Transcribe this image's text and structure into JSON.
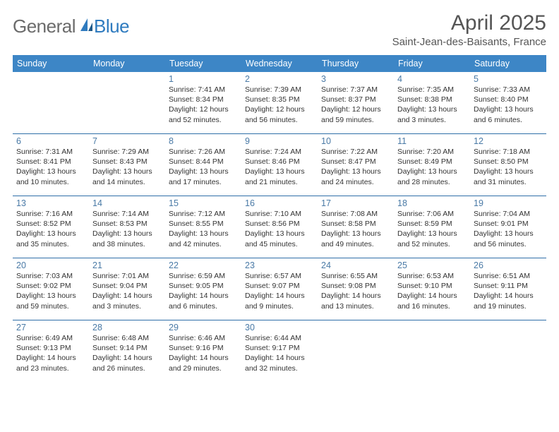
{
  "brand": {
    "text1": "General",
    "text2": "Blue"
  },
  "title": "April 2025",
  "location": "Saint-Jean-des-Baisants, France",
  "colors": {
    "header_bg": "#3d86c6",
    "header_text": "#ffffff",
    "row_border": "#2f6fa8",
    "daynum": "#4a7aa6",
    "body_text": "#333333",
    "logo_gray": "#6b6b6b",
    "logo_blue": "#2f7bbf",
    "background": "#ffffff"
  },
  "typography": {
    "title_fontsize": 30,
    "location_fontsize": 15,
    "header_fontsize": 12.5,
    "daynum_fontsize": 12.5,
    "body_fontsize": 10.5
  },
  "weekdays": [
    "Sunday",
    "Monday",
    "Tuesday",
    "Wednesday",
    "Thursday",
    "Friday",
    "Saturday"
  ],
  "weeks": [
    [
      null,
      null,
      {
        "n": "1",
        "sr": "Sunrise: 7:41 AM",
        "ss": "Sunset: 8:34 PM",
        "dl": "Daylight: 12 hours and 52 minutes."
      },
      {
        "n": "2",
        "sr": "Sunrise: 7:39 AM",
        "ss": "Sunset: 8:35 PM",
        "dl": "Daylight: 12 hours and 56 minutes."
      },
      {
        "n": "3",
        "sr": "Sunrise: 7:37 AM",
        "ss": "Sunset: 8:37 PM",
        "dl": "Daylight: 12 hours and 59 minutes."
      },
      {
        "n": "4",
        "sr": "Sunrise: 7:35 AM",
        "ss": "Sunset: 8:38 PM",
        "dl": "Daylight: 13 hours and 3 minutes."
      },
      {
        "n": "5",
        "sr": "Sunrise: 7:33 AM",
        "ss": "Sunset: 8:40 PM",
        "dl": "Daylight: 13 hours and 6 minutes."
      }
    ],
    [
      {
        "n": "6",
        "sr": "Sunrise: 7:31 AM",
        "ss": "Sunset: 8:41 PM",
        "dl": "Daylight: 13 hours and 10 minutes."
      },
      {
        "n": "7",
        "sr": "Sunrise: 7:29 AM",
        "ss": "Sunset: 8:43 PM",
        "dl": "Daylight: 13 hours and 14 minutes."
      },
      {
        "n": "8",
        "sr": "Sunrise: 7:26 AM",
        "ss": "Sunset: 8:44 PM",
        "dl": "Daylight: 13 hours and 17 minutes."
      },
      {
        "n": "9",
        "sr": "Sunrise: 7:24 AM",
        "ss": "Sunset: 8:46 PM",
        "dl": "Daylight: 13 hours and 21 minutes."
      },
      {
        "n": "10",
        "sr": "Sunrise: 7:22 AM",
        "ss": "Sunset: 8:47 PM",
        "dl": "Daylight: 13 hours and 24 minutes."
      },
      {
        "n": "11",
        "sr": "Sunrise: 7:20 AM",
        "ss": "Sunset: 8:49 PM",
        "dl": "Daylight: 13 hours and 28 minutes."
      },
      {
        "n": "12",
        "sr": "Sunrise: 7:18 AM",
        "ss": "Sunset: 8:50 PM",
        "dl": "Daylight: 13 hours and 31 minutes."
      }
    ],
    [
      {
        "n": "13",
        "sr": "Sunrise: 7:16 AM",
        "ss": "Sunset: 8:52 PM",
        "dl": "Daylight: 13 hours and 35 minutes."
      },
      {
        "n": "14",
        "sr": "Sunrise: 7:14 AM",
        "ss": "Sunset: 8:53 PM",
        "dl": "Daylight: 13 hours and 38 minutes."
      },
      {
        "n": "15",
        "sr": "Sunrise: 7:12 AM",
        "ss": "Sunset: 8:55 PM",
        "dl": "Daylight: 13 hours and 42 minutes."
      },
      {
        "n": "16",
        "sr": "Sunrise: 7:10 AM",
        "ss": "Sunset: 8:56 PM",
        "dl": "Daylight: 13 hours and 45 minutes."
      },
      {
        "n": "17",
        "sr": "Sunrise: 7:08 AM",
        "ss": "Sunset: 8:58 PM",
        "dl": "Daylight: 13 hours and 49 minutes."
      },
      {
        "n": "18",
        "sr": "Sunrise: 7:06 AM",
        "ss": "Sunset: 8:59 PM",
        "dl": "Daylight: 13 hours and 52 minutes."
      },
      {
        "n": "19",
        "sr": "Sunrise: 7:04 AM",
        "ss": "Sunset: 9:01 PM",
        "dl": "Daylight: 13 hours and 56 minutes."
      }
    ],
    [
      {
        "n": "20",
        "sr": "Sunrise: 7:03 AM",
        "ss": "Sunset: 9:02 PM",
        "dl": "Daylight: 13 hours and 59 minutes."
      },
      {
        "n": "21",
        "sr": "Sunrise: 7:01 AM",
        "ss": "Sunset: 9:04 PM",
        "dl": "Daylight: 14 hours and 3 minutes."
      },
      {
        "n": "22",
        "sr": "Sunrise: 6:59 AM",
        "ss": "Sunset: 9:05 PM",
        "dl": "Daylight: 14 hours and 6 minutes."
      },
      {
        "n": "23",
        "sr": "Sunrise: 6:57 AM",
        "ss": "Sunset: 9:07 PM",
        "dl": "Daylight: 14 hours and 9 minutes."
      },
      {
        "n": "24",
        "sr": "Sunrise: 6:55 AM",
        "ss": "Sunset: 9:08 PM",
        "dl": "Daylight: 14 hours and 13 minutes."
      },
      {
        "n": "25",
        "sr": "Sunrise: 6:53 AM",
        "ss": "Sunset: 9:10 PM",
        "dl": "Daylight: 14 hours and 16 minutes."
      },
      {
        "n": "26",
        "sr": "Sunrise: 6:51 AM",
        "ss": "Sunset: 9:11 PM",
        "dl": "Daylight: 14 hours and 19 minutes."
      }
    ],
    [
      {
        "n": "27",
        "sr": "Sunrise: 6:49 AM",
        "ss": "Sunset: 9:13 PM",
        "dl": "Daylight: 14 hours and 23 minutes."
      },
      {
        "n": "28",
        "sr": "Sunrise: 6:48 AM",
        "ss": "Sunset: 9:14 PM",
        "dl": "Daylight: 14 hours and 26 minutes."
      },
      {
        "n": "29",
        "sr": "Sunrise: 6:46 AM",
        "ss": "Sunset: 9:16 PM",
        "dl": "Daylight: 14 hours and 29 minutes."
      },
      {
        "n": "30",
        "sr": "Sunrise: 6:44 AM",
        "ss": "Sunset: 9:17 PM",
        "dl": "Daylight: 14 hours and 32 minutes."
      },
      null,
      null,
      null
    ]
  ]
}
